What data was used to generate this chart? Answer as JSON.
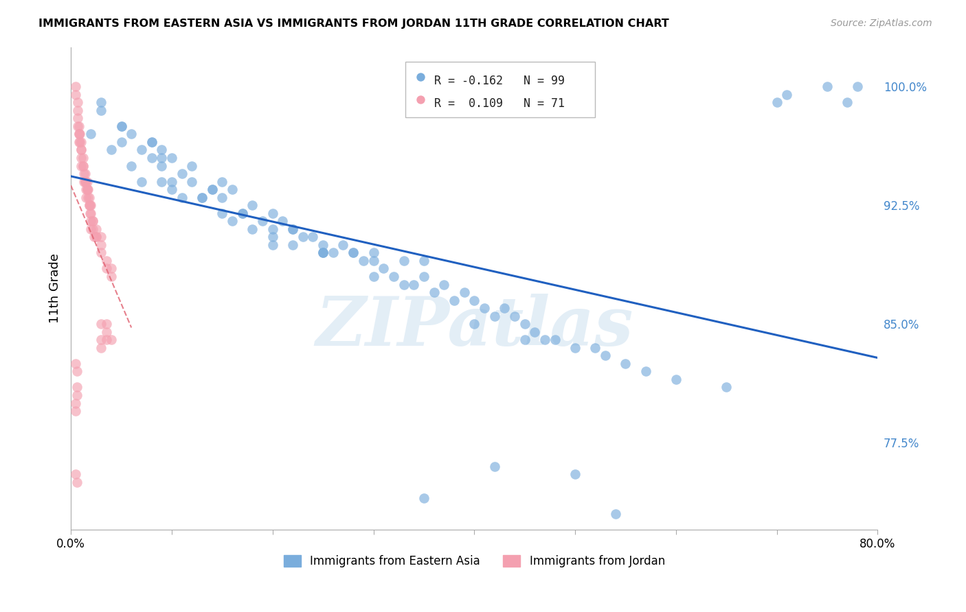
{
  "title": "IMMIGRANTS FROM EASTERN ASIA VS IMMIGRANTS FROM JORDAN 11TH GRADE CORRELATION CHART",
  "source": "Source: ZipAtlas.com",
  "ylabel": "11th Grade",
  "xlim": [
    0.0,
    0.8
  ],
  "ylim": [
    0.72,
    1.025
  ],
  "yticks": [
    0.775,
    0.85,
    0.925,
    1.0
  ],
  "ytick_labels": [
    "77.5%",
    "85.0%",
    "92.5%",
    "100.0%"
  ],
  "xticks": [
    0.0,
    0.1,
    0.2,
    0.3,
    0.4,
    0.5,
    0.6,
    0.7,
    0.8
  ],
  "xtick_labels": [
    "0.0%",
    "",
    "",
    "",
    "",
    "",
    "",
    "",
    "80.0%"
  ],
  "blue_R": -0.162,
  "blue_N": 99,
  "pink_R": 0.109,
  "pink_N": 71,
  "blue_color": "#7aaddc",
  "pink_color": "#f4a0b0",
  "blue_line_color": "#2060c0",
  "pink_line_color": "#e06070",
  "watermark": "ZIPatlas",
  "blue_scatter_x": [
    0.02,
    0.03,
    0.04,
    0.05,
    0.05,
    0.06,
    0.07,
    0.08,
    0.08,
    0.09,
    0.09,
    0.1,
    0.1,
    0.11,
    0.12,
    0.12,
    0.13,
    0.14,
    0.15,
    0.15,
    0.16,
    0.17,
    0.18,
    0.18,
    0.19,
    0.2,
    0.2,
    0.21,
    0.22,
    0.22,
    0.23,
    0.24,
    0.25,
    0.25,
    0.26,
    0.27,
    0.28,
    0.29,
    0.3,
    0.3,
    0.31,
    0.32,
    0.33,
    0.34,
    0.35,
    0.36,
    0.37,
    0.38,
    0.39,
    0.4,
    0.41,
    0.42,
    0.43,
    0.44,
    0.45,
    0.46,
    0.47,
    0.48,
    0.5,
    0.52,
    0.53,
    0.55,
    0.57,
    0.6,
    0.65,
    0.7,
    0.71,
    0.75,
    0.77,
    0.78,
    0.06,
    0.07,
    0.08,
    0.09,
    0.1,
    0.11,
    0.13,
    0.15,
    0.17,
    0.2,
    0.22,
    0.25,
    0.28,
    0.3,
    0.33,
    0.35,
    0.4,
    0.45,
    0.5,
    0.54,
    0.03,
    0.05,
    0.09,
    0.14,
    0.16,
    0.2,
    0.25,
    0.35,
    0.42
  ],
  "blue_scatter_y": [
    0.97,
    0.985,
    0.96,
    0.965,
    0.975,
    0.95,
    0.94,
    0.955,
    0.965,
    0.94,
    0.96,
    0.94,
    0.955,
    0.945,
    0.95,
    0.94,
    0.93,
    0.935,
    0.93,
    0.94,
    0.935,
    0.92,
    0.925,
    0.91,
    0.915,
    0.92,
    0.905,
    0.915,
    0.91,
    0.9,
    0.905,
    0.905,
    0.9,
    0.895,
    0.895,
    0.9,
    0.895,
    0.89,
    0.88,
    0.895,
    0.885,
    0.88,
    0.875,
    0.875,
    0.88,
    0.87,
    0.875,
    0.865,
    0.87,
    0.865,
    0.86,
    0.855,
    0.86,
    0.855,
    0.85,
    0.845,
    0.84,
    0.84,
    0.835,
    0.835,
    0.83,
    0.825,
    0.82,
    0.815,
    0.81,
    0.99,
    0.995,
    1.0,
    0.99,
    1.0,
    0.97,
    0.96,
    0.965,
    0.955,
    0.935,
    0.93,
    0.93,
    0.92,
    0.92,
    0.91,
    0.91,
    0.895,
    0.895,
    0.89,
    0.89,
    0.89,
    0.85,
    0.84,
    0.755,
    0.73,
    0.99,
    0.975,
    0.95,
    0.935,
    0.915,
    0.9,
    0.895,
    0.74,
    0.76
  ],
  "pink_scatter_x": [
    0.005,
    0.005,
    0.007,
    0.007,
    0.008,
    0.008,
    0.009,
    0.009,
    0.01,
    0.01,
    0.01,
    0.01,
    0.012,
    0.012,
    0.013,
    0.013,
    0.014,
    0.014,
    0.015,
    0.015,
    0.015,
    0.016,
    0.016,
    0.017,
    0.017,
    0.018,
    0.018,
    0.019,
    0.019,
    0.02,
    0.02,
    0.02,
    0.022,
    0.022,
    0.023,
    0.025,
    0.025,
    0.03,
    0.03,
    0.03,
    0.035,
    0.035,
    0.04,
    0.04,
    0.005,
    0.005,
    0.006,
    0.006,
    0.005,
    0.006,
    0.03,
    0.03,
    0.035,
    0.035,
    0.007,
    0.007,
    0.008,
    0.008,
    0.01,
    0.012,
    0.014,
    0.016,
    0.018,
    0.02,
    0.022,
    0.025,
    0.03,
    0.035,
    0.04,
    0.005,
    0.006
  ],
  "pink_scatter_y": [
    1.0,
    0.995,
    0.99,
    0.985,
    0.975,
    0.97,
    0.97,
    0.965,
    0.96,
    0.965,
    0.955,
    0.95,
    0.95,
    0.955,
    0.945,
    0.94,
    0.945,
    0.94,
    0.935,
    0.94,
    0.93,
    0.94,
    0.935,
    0.93,
    0.935,
    0.925,
    0.93,
    0.925,
    0.92,
    0.925,
    0.915,
    0.91,
    0.915,
    0.91,
    0.905,
    0.91,
    0.905,
    0.905,
    0.9,
    0.895,
    0.89,
    0.885,
    0.885,
    0.88,
    0.8,
    0.795,
    0.81,
    0.805,
    0.825,
    0.82,
    0.84,
    0.835,
    0.845,
    0.84,
    0.98,
    0.975,
    0.97,
    0.965,
    0.96,
    0.95,
    0.94,
    0.935,
    0.925,
    0.92,
    0.915,
    0.905,
    0.85,
    0.85,
    0.84,
    0.755,
    0.75
  ]
}
